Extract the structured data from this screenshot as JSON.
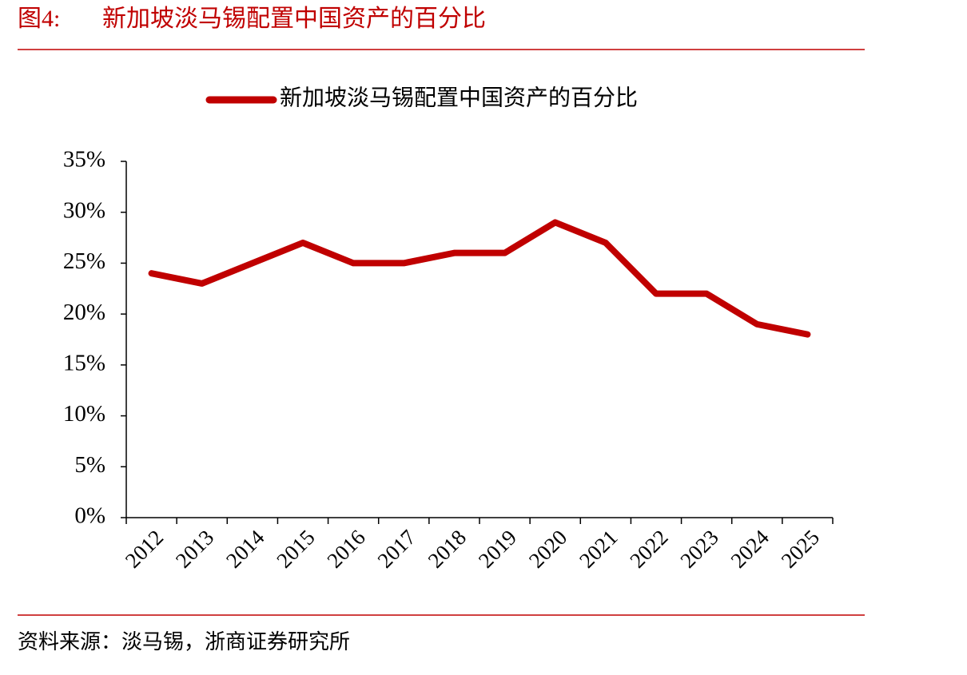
{
  "header": {
    "figure_label": "图4:",
    "title": "新加坡淡马锡配置中国资产的百分比"
  },
  "chart_data": {
    "type": "line",
    "categories": [
      "2012",
      "2013",
      "2014",
      "2015",
      "2016",
      "2017",
      "2018",
      "2019",
      "2020",
      "2021",
      "2022",
      "2023",
      "2024",
      "2025"
    ],
    "series": [
      {
        "name": "新加坡淡马锡配置中国资产的百分比",
        "color": "#c00000",
        "values": [
          24,
          23,
          25,
          27,
          25,
          25,
          26,
          26,
          29,
          27,
          22,
          22,
          19,
          18
        ]
      }
    ],
    "ylim": [
      0,
      35
    ],
    "yticks": [
      {
        "value": 0,
        "label": "0%"
      },
      {
        "value": 5,
        "label": "5%"
      },
      {
        "value": 10,
        "label": "10%"
      },
      {
        "value": 15,
        "label": "15%"
      },
      {
        "value": 20,
        "label": "20%"
      },
      {
        "value": 25,
        "label": "25%"
      },
      {
        "value": 30,
        "label": "30%"
      },
      {
        "value": 35,
        "label": "35%"
      }
    ],
    "legend": "top",
    "grid": false
  },
  "footer": {
    "source": "资料来源：淡马锡，浙商证券研究所"
  }
}
